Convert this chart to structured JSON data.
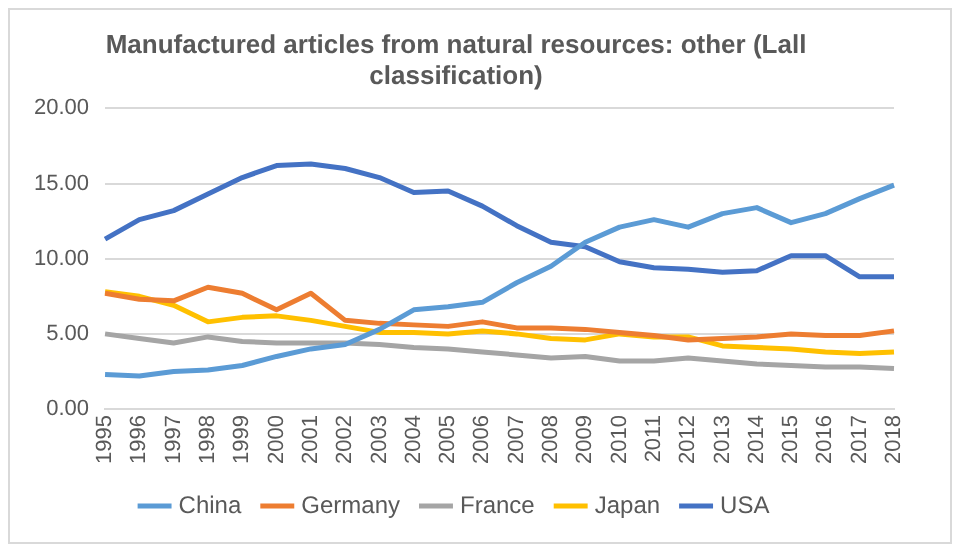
{
  "chart_data": {
    "type": "line",
    "title": "Manufactured articles from natural resources: other (Lall classification)",
    "categories": [
      "1995",
      "1996",
      "1997",
      "1998",
      "1999",
      "2000",
      "2001",
      "2002",
      "2003",
      "2004",
      "2005",
      "2006",
      "2007",
      "2008",
      "2009",
      "2010",
      "2011",
      "2012",
      "2013",
      "2014",
      "2015",
      "2016",
      "2017",
      "2018"
    ],
    "series": [
      {
        "name": "China",
        "color": "#5b9bd5",
        "values": [
          2.3,
          2.2,
          2.5,
          2.6,
          2.9,
          3.5,
          4.0,
          4.3,
          5.3,
          6.6,
          6.8,
          7.1,
          8.4,
          9.5,
          11.1,
          12.1,
          12.6,
          12.1,
          13.0,
          13.4,
          12.4,
          13.0,
          14.0,
          14.9
        ]
      },
      {
        "name": "Germany",
        "color": "#ed7d31",
        "values": [
          7.7,
          7.3,
          7.2,
          8.1,
          7.7,
          6.6,
          7.7,
          5.9,
          5.7,
          5.6,
          5.5,
          5.8,
          5.4,
          5.4,
          5.3,
          5.1,
          4.9,
          4.6,
          4.7,
          4.8,
          5.0,
          4.9,
          4.9,
          5.2
        ]
      },
      {
        "name": "France",
        "color": "#a5a5a5",
        "values": [
          5.0,
          4.7,
          4.4,
          4.8,
          4.5,
          4.4,
          4.4,
          4.4,
          4.3,
          4.1,
          4.0,
          3.8,
          3.6,
          3.4,
          3.5,
          3.2,
          3.2,
          3.4,
          3.2,
          3.0,
          2.9,
          2.8,
          2.8,
          2.7
        ]
      },
      {
        "name": "Japan",
        "color": "#ffc000",
        "values": [
          7.8,
          7.5,
          6.9,
          5.8,
          6.1,
          6.2,
          5.9,
          5.5,
          5.1,
          5.1,
          5.0,
          5.2,
          5.0,
          4.7,
          4.6,
          5.0,
          4.8,
          4.8,
          4.2,
          4.1,
          4.0,
          3.8,
          3.7,
          3.8
        ]
      },
      {
        "name": "USA",
        "color": "#4472c4",
        "values": [
          11.3,
          12.6,
          13.2,
          14.3,
          15.4,
          16.2,
          16.3,
          16.0,
          15.4,
          14.4,
          14.5,
          13.5,
          12.2,
          11.1,
          10.8,
          9.8,
          9.4,
          9.3,
          9.1,
          9.2,
          10.2,
          10.2,
          8.8,
          8.8
        ]
      }
    ],
    "ylim": [
      0,
      20
    ],
    "yticks": [
      {
        "value": 0,
        "label": "0.00"
      },
      {
        "value": 5,
        "label": "5.00"
      },
      {
        "value": 10,
        "label": "10.00"
      },
      {
        "value": 15,
        "label": "15.00"
      },
      {
        "value": 20,
        "label": "20.00"
      }
    ],
    "grid": "y",
    "legend": "bottom",
    "marker": "none",
    "line_style": "solid"
  }
}
